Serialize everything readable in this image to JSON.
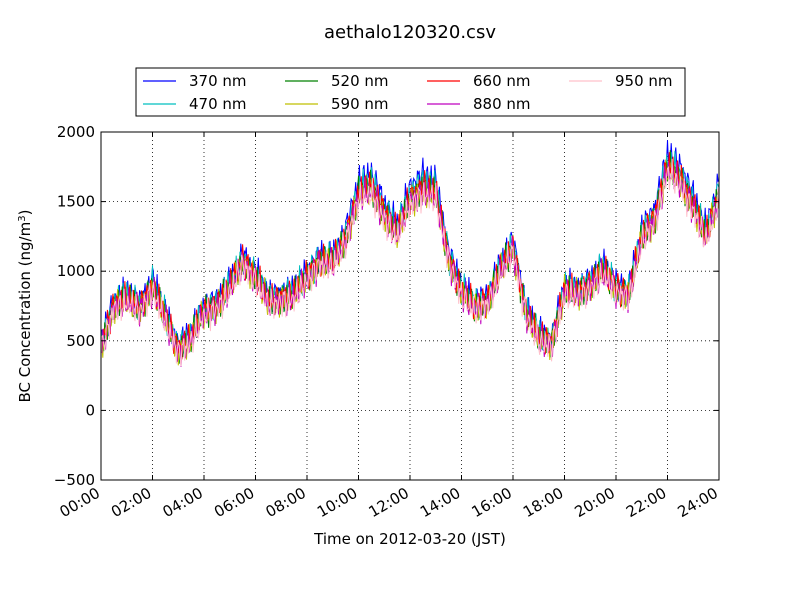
{
  "chart_data": {
    "type": "line",
    "title": "aethalo120320.csv",
    "xlabel": "Time on 2012-03-20 (JST)",
    "ylabel": "BC Concentration (ng/m³)",
    "ylabel_parts": {
      "main": "BC Concentration (ng/m",
      "sup": "3",
      "end": ")"
    },
    "x_unit": "hour of day",
    "xlim": [
      0,
      24
    ],
    "ylim": [
      -500,
      2000
    ],
    "x_ticks": [
      0,
      2,
      4,
      6,
      8,
      10,
      12,
      14,
      16,
      18,
      20,
      22,
      24
    ],
    "x_tick_labels": [
      "00:00",
      "02:00",
      "04:00",
      "06:00",
      "08:00",
      "10:00",
      "12:00",
      "14:00",
      "16:00",
      "18:00",
      "20:00",
      "22:00",
      "24:00"
    ],
    "y_ticks": [
      -500,
      0,
      500,
      1000,
      1500,
      2000
    ],
    "y_tick_labels": [
      "−500",
      "0",
      "500",
      "1000",
      "1500",
      "2000"
    ],
    "grid": true,
    "legend_position": "top",
    "x": [
      0,
      0.5,
      1,
      1.5,
      2,
      2.5,
      3,
      3.5,
      4,
      4.5,
      5,
      5.5,
      6,
      6.5,
      7,
      7.5,
      8,
      8.5,
      9,
      9.5,
      10,
      10.5,
      11,
      11.5,
      12,
      12.5,
      13,
      13.5,
      14,
      14.5,
      15,
      15.5,
      16,
      16.5,
      17,
      17.5,
      18,
      18.5,
      19,
      19.5,
      20,
      20.5,
      21,
      21.5,
      22,
      22.5,
      23,
      23.5,
      24
    ],
    "series": [
      {
        "name": "370 nm",
        "color": "#0000ff",
        "values": [
          500,
          800,
          850,
          780,
          950,
          700,
          480,
          560,
          750,
          800,
          920,
          1120,
          1000,
          820,
          850,
          870,
          1000,
          1120,
          1100,
          1300,
          1650,
          1700,
          1500,
          1330,
          1600,
          1700,
          1650,
          1150,
          900,
          780,
          830,
          1050,
          1230,
          750,
          560,
          520,
          900,
          880,
          950,
          1050,
          920,
          880,
          1300,
          1450,
          1850,
          1750,
          1550,
          1300,
          1650
        ]
      },
      {
        "name": "470 nm",
        "color": "#00bfbf",
        "values": [
          480,
          780,
          830,
          760,
          920,
          680,
          460,
          540,
          730,
          780,
          900,
          1100,
          980,
          800,
          830,
          850,
          980,
          1100,
          1080,
          1270,
          1600,
          1650,
          1460,
          1300,
          1560,
          1650,
          1600,
          1120,
          870,
          760,
          810,
          1020,
          1200,
          730,
          540,
          500,
          880,
          860,
          930,
          1020,
          900,
          860,
          1270,
          1410,
          1790,
          1700,
          1510,
          1270,
          1600
        ]
      },
      {
        "name": "520 nm",
        "color": "#008000",
        "values": [
          460,
          760,
          800,
          740,
          890,
          660,
          440,
          520,
          710,
          760,
          880,
          1080,
          960,
          780,
          810,
          830,
          960,
          1080,
          1060,
          1240,
          1560,
          1600,
          1420,
          1270,
          1520,
          1600,
          1560,
          1100,
          850,
          740,
          790,
          1000,
          1170,
          710,
          520,
          490,
          860,
          840,
          910,
          1000,
          880,
          840,
          1240,
          1380,
          1750,
          1660,
          1480,
          1240,
          1560
        ]
      },
      {
        "name": "590 nm",
        "color": "#bfbf00",
        "values": [
          450,
          750,
          790,
          730,
          880,
          650,
          430,
          510,
          700,
          750,
          870,
          1070,
          950,
          770,
          800,
          820,
          950,
          1070,
          1050,
          1230,
          1540,
          1580,
          1400,
          1260,
          1500,
          1580,
          1540,
          1090,
          840,
          730,
          780,
          990,
          1160,
          700,
          510,
          480,
          850,
          830,
          900,
          990,
          870,
          830,
          1230,
          1370,
          1730,
          1640,
          1460,
          1230,
          1540
        ]
      },
      {
        "name": "660 nm",
        "color": "#ff0000",
        "values": [
          470,
          770,
          810,
          750,
          900,
          670,
          450,
          530,
          720,
          770,
          890,
          1090,
          970,
          790,
          820,
          840,
          970,
          1090,
          1070,
          1250,
          1570,
          1620,
          1440,
          1280,
          1530,
          1620,
          1570,
          1110,
          860,
          750,
          800,
          1010,
          1180,
          720,
          530,
          500,
          870,
          850,
          920,
          1010,
          890,
          850,
          1250,
          1400,
          1770,
          1680,
          1490,
          1250,
          1570
        ]
      },
      {
        "name": "880 nm",
        "color": "#bf00bf",
        "values": [
          440,
          740,
          780,
          720,
          870,
          640,
          420,
          500,
          690,
          740,
          860,
          1060,
          940,
          760,
          790,
          810,
          940,
          1060,
          1040,
          1220,
          1530,
          1570,
          1390,
          1250,
          1490,
          1570,
          1530,
          1080,
          830,
          720,
          770,
          980,
          1150,
          690,
          500,
          470,
          840,
          820,
          890,
          980,
          860,
          820,
          1220,
          1360,
          1720,
          1630,
          1450,
          1220,
          1530
        ]
      },
      {
        "name": "950 nm",
        "color": "#ffc0cb",
        "values": [
          430,
          730,
          770,
          710,
          860,
          630,
          410,
          490,
          680,
          730,
          850,
          1050,
          930,
          750,
          780,
          800,
          930,
          1050,
          1030,
          1210,
          1510,
          1550,
          1370,
          1240,
          1470,
          1550,
          1510,
          1070,
          820,
          710,
          760,
          970,
          1140,
          680,
          490,
          460,
          830,
          810,
          880,
          970,
          850,
          810,
          1210,
          1350,
          1700,
          1610,
          1430,
          1210,
          1510
        ]
      }
    ]
  }
}
